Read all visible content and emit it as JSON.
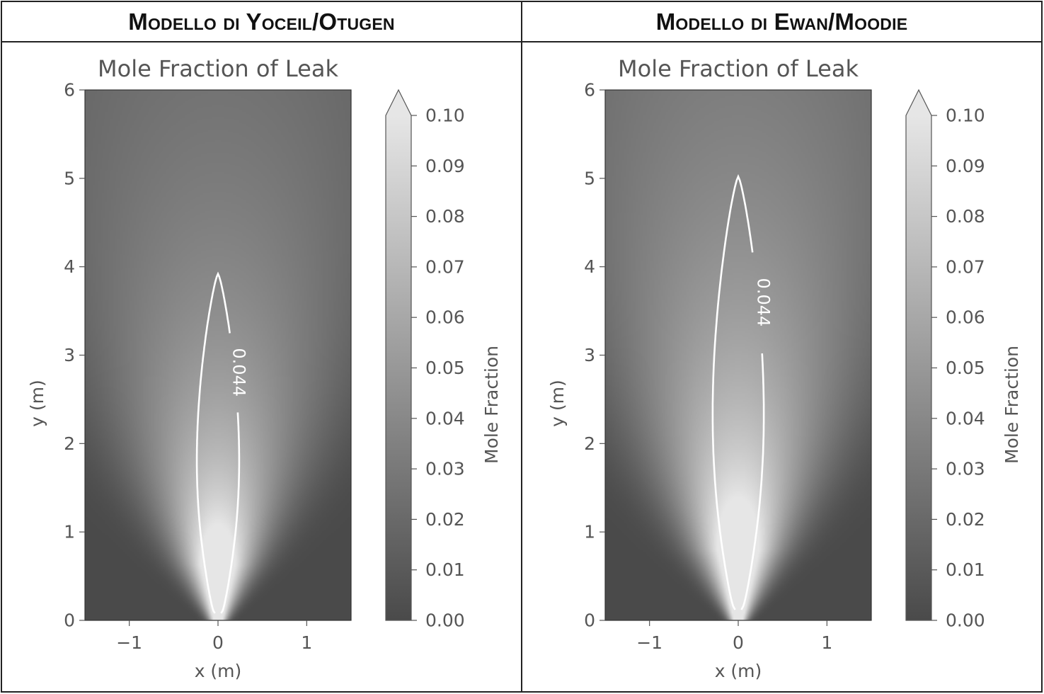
{
  "headers": {
    "left": "Modello di Yoceil/Otugen",
    "right": "Modello di Ewan/Moodie"
  },
  "chart_data": [
    {
      "type": "heatmap",
      "title": "Mole Fraction of Leak",
      "xlabel": "x (m)",
      "ylabel": "y (m)",
      "xlim": [
        -1.5,
        1.5
      ],
      "ylim": [
        0,
        6
      ],
      "xticks": [
        "−1",
        "0",
        "1"
      ],
      "xtick_values": [
        -1,
        0,
        1
      ],
      "yticks": [
        "0",
        "1",
        "2",
        "3",
        "4",
        "5",
        "6"
      ],
      "ytick_values": [
        0,
        1,
        2,
        3,
        4,
        5,
        6
      ],
      "colorbar": {
        "label": "Mole Fraction",
        "ticks": [
          "0.00",
          "0.01",
          "0.02",
          "0.03",
          "0.04",
          "0.05",
          "0.06",
          "0.07",
          "0.08",
          "0.09",
          "0.10"
        ],
        "tick_values": [
          0.0,
          0.01,
          0.02,
          0.03,
          0.04,
          0.05,
          0.06,
          0.07,
          0.08,
          0.09,
          0.1
        ],
        "range": [
          0.0,
          0.1
        ],
        "extend": "max",
        "colormap": "gray",
        "low_color": "#4a4a4a",
        "high_color": "#e6e6e6"
      },
      "contour": {
        "level": 0.044,
        "label": "0.044",
        "color": "#ffffff",
        "y_tip": 3.92,
        "y_base": 0.08,
        "half_width_max": 0.24,
        "y_at_max_width": 2.1
      },
      "plume": {
        "spread": 0.32,
        "core_length": 1.8
      }
    },
    {
      "type": "heatmap",
      "title": "Mole Fraction of Leak",
      "xlabel": "x (m)",
      "ylabel": "y (m)",
      "xlim": [
        -1.5,
        1.5
      ],
      "ylim": [
        0,
        6
      ],
      "xticks": [
        "−1",
        "0",
        "1"
      ],
      "xtick_values": [
        -1,
        0,
        1
      ],
      "yticks": [
        "0",
        "1",
        "2",
        "3",
        "4",
        "5",
        "6"
      ],
      "ytick_values": [
        0,
        1,
        2,
        3,
        4,
        5,
        6
      ],
      "colorbar": {
        "label": "Mole Fraction",
        "ticks": [
          "0.00",
          "0.01",
          "0.02",
          "0.03",
          "0.04",
          "0.05",
          "0.06",
          "0.07",
          "0.08",
          "0.09",
          "0.10"
        ],
        "tick_values": [
          0.0,
          0.01,
          0.02,
          0.03,
          0.04,
          0.05,
          0.06,
          0.07,
          0.08,
          0.09,
          0.1
        ],
        "range": [
          0.0,
          0.1
        ],
        "extend": "max",
        "colormap": "gray",
        "low_color": "#4a4a4a",
        "high_color": "#e6e6e6"
      },
      "contour": {
        "level": 0.044,
        "label": "0.044",
        "color": "#ffffff",
        "y_tip": 5.02,
        "y_base": 0.12,
        "half_width_max": 0.29,
        "y_at_max_width": 2.8
      },
      "plume": {
        "spread": 0.32,
        "core_length": 2.3
      }
    }
  ]
}
